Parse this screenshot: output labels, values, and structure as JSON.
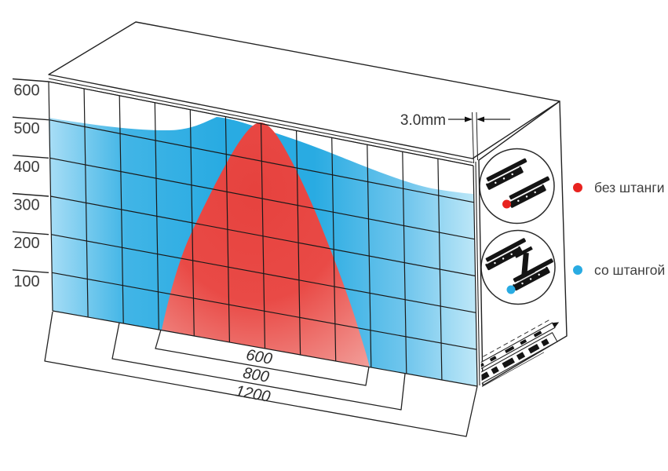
{
  "diagram": {
    "gap_label": "3.0mm"
  },
  "chart_data": {
    "type": "area",
    "description": "Load distribution profile across cabinet width for drawer slides, without rod (red) vs with stabilizing rod (blue)",
    "y_axis": {
      "ticks": [
        "600",
        "500",
        "400",
        "300",
        "200",
        "100"
      ],
      "min": 0,
      "max": 600
    },
    "x_axis": {
      "total_span": 1200,
      "width_brackets": [
        "600",
        "800",
        "1200"
      ]
    },
    "series": [
      {
        "name": "со штангой",
        "color": "#29abe2",
        "span": 1200,
        "profile_x_level": [
          [
            0,
            505
          ],
          [
            250,
            520
          ],
          [
            490,
            580
          ],
          [
            600,
            575
          ],
          [
            800,
            520
          ],
          [
            1000,
            495
          ],
          [
            1200,
            490
          ]
        ]
      },
      {
        "name": "без штанги",
        "color": "#e8231f",
        "span": 600,
        "profile_x_level": [
          [
            300,
            0
          ],
          [
            390,
            260
          ],
          [
            470,
            410
          ],
          [
            600,
            590
          ],
          [
            700,
            480
          ],
          [
            810,
            300
          ],
          [
            900,
            0
          ]
        ]
      }
    ],
    "annotations": [
      {
        "label": "3.0mm"
      }
    ],
    "grid": {
      "columns": 12,
      "rows": 6,
      "units_per_cell": 100
    },
    "legend_position": "right"
  },
  "legend": {
    "items": [
      {
        "label": "без штанги",
        "color": "#e8231f"
      },
      {
        "label": "со штангой",
        "color": "#29abe2"
      }
    ]
  },
  "colors": {
    "blue": "#29abe2",
    "blue_light": "#a9def6",
    "blue_pale": "#bfe8f8",
    "red": "#e8231f",
    "red_area": "#e6423e",
    "red_area_edge": "#f29e99",
    "outline": "#222222",
    "text": "#3c3c3c"
  }
}
